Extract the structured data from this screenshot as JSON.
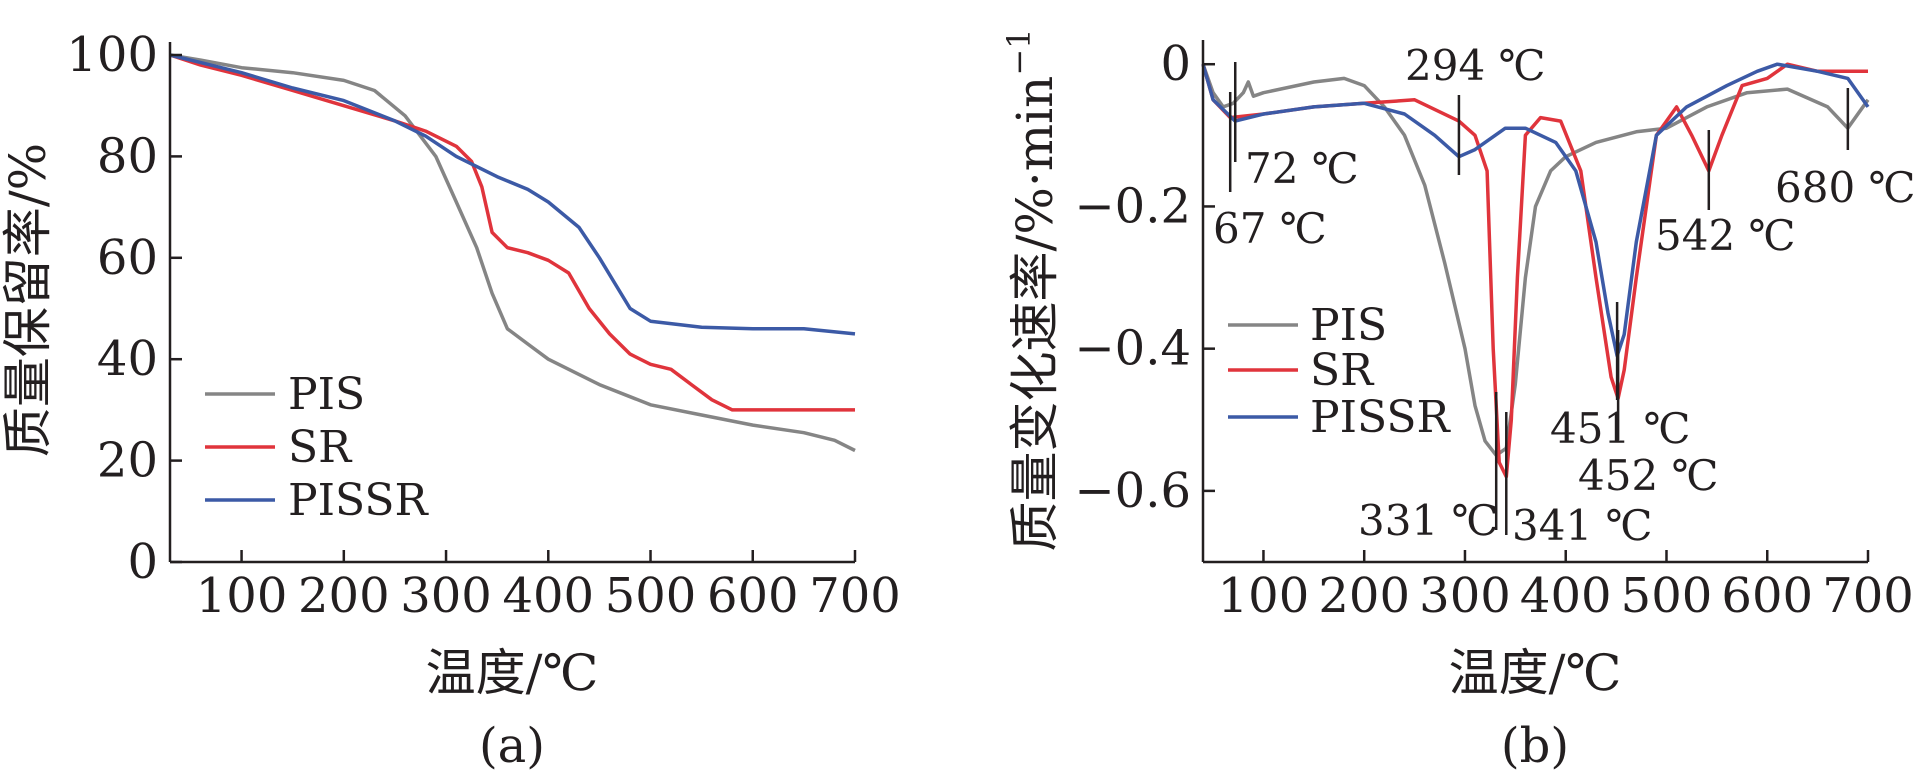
{
  "colors": {
    "PIS": "#858585",
    "SR": "#e0343c",
    "PISSR": "#3c5aa6",
    "axis": "#231f20"
  },
  "chart_data": [
    {
      "type": "line",
      "panel_label": "(a)",
      "xlabel": "温度/℃",
      "ylabel": "质量保留率/%",
      "xlim": [
        30,
        700
      ],
      "ylim": [
        0,
        100
      ],
      "x_ticks": [
        100,
        200,
        300,
        400,
        500,
        600,
        700
      ],
      "y_ticks": [
        0,
        20,
        40,
        60,
        80,
        100
      ],
      "legend": "lower-left",
      "grid": false,
      "series": [
        {
          "name": "PIS",
          "color": "#858585",
          "points": [
            [
              30,
              100
            ],
            [
              60,
              99
            ],
            [
              100,
              97.5
            ],
            [
              150,
              96.5
            ],
            [
              200,
              95
            ],
            [
              230,
              93
            ],
            [
              260,
              88
            ],
            [
              290,
              80
            ],
            [
              310,
              71
            ],
            [
              330,
              62
            ],
            [
              345,
              53
            ],
            [
              360,
              46
            ],
            [
              380,
              43
            ],
            [
              400,
              40
            ],
            [
              450,
              35
            ],
            [
              500,
              31
            ],
            [
              550,
              29
            ],
            [
              600,
              27
            ],
            [
              650,
              25.5
            ],
            [
              680,
              24
            ],
            [
              700,
              22
            ]
          ]
        },
        {
          "name": "SR",
          "color": "#e0343c",
          "points": [
            [
              30,
              100
            ],
            [
              60,
              98
            ],
            [
              100,
              96
            ],
            [
              150,
              93
            ],
            [
              200,
              90
            ],
            [
              250,
              87
            ],
            [
              280,
              85
            ],
            [
              310,
              82
            ],
            [
              325,
              79
            ],
            [
              335,
              74
            ],
            [
              345,
              65
            ],
            [
              360,
              62
            ],
            [
              380,
              61
            ],
            [
              400,
              59.5
            ],
            [
              420,
              57
            ],
            [
              440,
              50
            ],
            [
              460,
              45
            ],
            [
              480,
              41
            ],
            [
              500,
              39
            ],
            [
              520,
              38
            ],
            [
              540,
              35
            ],
            [
              560,
              32
            ],
            [
              580,
              30
            ],
            [
              600,
              30
            ],
            [
              650,
              30
            ],
            [
              700,
              30
            ]
          ]
        },
        {
          "name": "PISSR",
          "color": "#3c5aa6",
          "points": [
            [
              30,
              100
            ],
            [
              60,
              98.5
            ],
            [
              100,
              96.5
            ],
            [
              150,
              93.5
            ],
            [
              200,
              91
            ],
            [
              250,
              87
            ],
            [
              280,
              84
            ],
            [
              310,
              80
            ],
            [
              350,
              76
            ],
            [
              380,
              73.5
            ],
            [
              400,
              71
            ],
            [
              430,
              66
            ],
            [
              450,
              60
            ],
            [
              465,
              55
            ],
            [
              480,
              50
            ],
            [
              500,
              47.5
            ],
            [
              550,
              46.3
            ],
            [
              600,
              46
            ],
            [
              650,
              46
            ],
            [
              700,
              45
            ]
          ]
        }
      ]
    },
    {
      "type": "line",
      "panel_label": "(b)",
      "xlabel": "温度/℃",
      "ylabel": "质量变化速率/%·min",
      "ylabel_superscript": "−1",
      "xlim": [
        40,
        700
      ],
      "ylim": [
        -0.7,
        0.02
      ],
      "x_ticks": [
        100,
        200,
        300,
        400,
        500,
        600,
        700
      ],
      "y_ticks": [
        0,
        -0.2,
        -0.4,
        -0.6
      ],
      "y_tick_labels": [
        "0",
        "−0.2",
        "−0.4",
        "−0.6"
      ],
      "legend": "lower-left",
      "grid": false,
      "series": [
        {
          "name": "PIS",
          "color": "#858585",
          "points": [
            [
              40,
              0
            ],
            [
              50,
              -0.04
            ],
            [
              60,
              -0.06
            ],
            [
              70,
              -0.055
            ],
            [
              80,
              -0.04
            ],
            [
              85,
              -0.025
            ],
            [
              90,
              -0.045
            ],
            [
              100,
              -0.04
            ],
            [
              150,
              -0.025
            ],
            [
              180,
              -0.02
            ],
            [
              200,
              -0.03
            ],
            [
              220,
              -0.06
            ],
            [
              240,
              -0.1
            ],
            [
              260,
              -0.17
            ],
            [
              280,
              -0.28
            ],
            [
              300,
              -0.4
            ],
            [
              310,
              -0.48
            ],
            [
              320,
              -0.53
            ],
            [
              331,
              -0.55
            ],
            [
              341,
              -0.54
            ],
            [
              350,
              -0.45
            ],
            [
              360,
              -0.3
            ],
            [
              370,
              -0.2
            ],
            [
              385,
              -0.15
            ],
            [
              400,
              -0.13
            ],
            [
              430,
              -0.11
            ],
            [
              470,
              -0.095
            ],
            [
              500,
              -0.09
            ],
            [
              540,
              -0.06
            ],
            [
              580,
              -0.04
            ],
            [
              620,
              -0.035
            ],
            [
              660,
              -0.06
            ],
            [
              680,
              -0.09
            ],
            [
              700,
              -0.05
            ]
          ]
        },
        {
          "name": "SR",
          "color": "#e0343c",
          "points": [
            [
              40,
              0
            ],
            [
              50,
              -0.05
            ],
            [
              67,
              -0.075
            ],
            [
              100,
              -0.07
            ],
            [
              150,
              -0.06
            ],
            [
              200,
              -0.055
            ],
            [
              250,
              -0.05
            ],
            [
              294,
              -0.08
            ],
            [
              310,
              -0.1
            ],
            [
              322,
              -0.15
            ],
            [
              328,
              -0.4
            ],
            [
              334,
              -0.56
            ],
            [
              341,
              -0.58
            ],
            [
              346,
              -0.5
            ],
            [
              352,
              -0.3
            ],
            [
              360,
              -0.1
            ],
            [
              375,
              -0.075
            ],
            [
              395,
              -0.08
            ],
            [
              415,
              -0.15
            ],
            [
              430,
              -0.3
            ],
            [
              445,
              -0.44
            ],
            [
              452,
              -0.47
            ],
            [
              458,
              -0.43
            ],
            [
              470,
              -0.3
            ],
            [
              490,
              -0.1
            ],
            [
              510,
              -0.06
            ],
            [
              525,
              -0.1
            ],
            [
              542,
              -0.15
            ],
            [
              555,
              -0.1
            ],
            [
              575,
              -0.03
            ],
            [
              600,
              -0.02
            ],
            [
              620,
              0
            ],
            [
              650,
              -0.01
            ],
            [
              700,
              -0.01
            ]
          ]
        },
        {
          "name": "PISSR",
          "color": "#3c5aa6",
          "points": [
            [
              40,
              0
            ],
            [
              50,
              -0.05
            ],
            [
              72,
              -0.08
            ],
            [
              100,
              -0.07
            ],
            [
              150,
              -0.06
            ],
            [
              200,
              -0.055
            ],
            [
              240,
              -0.07
            ],
            [
              270,
              -0.1
            ],
            [
              294,
              -0.13
            ],
            [
              310,
              -0.12
            ],
            [
              340,
              -0.09
            ],
            [
              360,
              -0.09
            ],
            [
              390,
              -0.11
            ],
            [
              410,
              -0.15
            ],
            [
              430,
              -0.25
            ],
            [
              442,
              -0.35
            ],
            [
              451,
              -0.41
            ],
            [
              458,
              -0.38
            ],
            [
              470,
              -0.25
            ],
            [
              490,
              -0.1
            ],
            [
              520,
              -0.06
            ],
            [
              560,
              -0.03
            ],
            [
              590,
              -0.01
            ],
            [
              610,
              0
            ],
            [
              650,
              -0.01
            ],
            [
              680,
              -0.02
            ],
            [
              700,
              -0.06
            ]
          ]
        }
      ],
      "annotations": [
        {
          "text": "67 ℃",
          "x": 67
        },
        {
          "text": "72 ℃",
          "x": 72
        },
        {
          "text": "294 ℃",
          "x": 294
        },
        {
          "text": "331 ℃",
          "x": 331
        },
        {
          "text": "341 ℃",
          "x": 341
        },
        {
          "text": "451 ℃",
          "x": 451
        },
        {
          "text": "452 ℃",
          "x": 452
        },
        {
          "text": "542 ℃",
          "x": 542
        },
        {
          "text": "680 ℃",
          "x": 680
        }
      ]
    }
  ]
}
